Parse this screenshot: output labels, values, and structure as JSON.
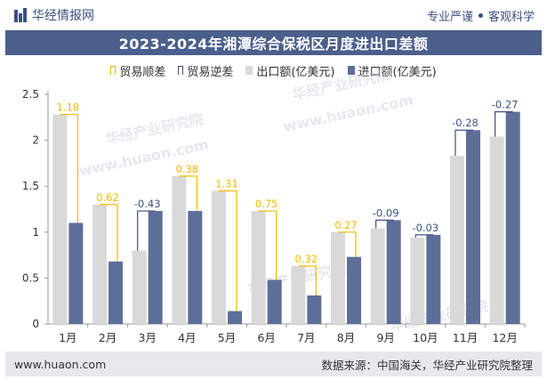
{
  "header": {
    "brand": "华经情报网",
    "tag_left": "专业严谨",
    "tag_right": "客观科学"
  },
  "title": "2023-2024年湘潭综合保税区月度进出口差额",
  "legend": {
    "surplus": "贸易顺差",
    "deficit": "贸易逆差",
    "export": "出口额(亿美元)",
    "import": "进口额(亿美元)"
  },
  "watermarks": [
    "华经产业研究院",
    "www.huaon.com"
  ],
  "footer": {
    "url": "www.huaon.com",
    "source": "数据来源：中国海关，华经产业研究院整理"
  },
  "colors": {
    "surplus": "#f5b800",
    "deficit": "#3b5083",
    "export": "#d9d9d9",
    "import": "#5d6f99",
    "header_bar": "#4b5f8c"
  },
  "chart_data": {
    "type": "bar",
    "categories": [
      "1月",
      "2月",
      "3月",
      "4月",
      "5月",
      "6月",
      "7月",
      "8月",
      "9月",
      "10月",
      "11月",
      "12月"
    ],
    "ylim": [
      0,
      2.5
    ],
    "yticks": [
      "0",
      "0.5",
      "1",
      "1.5",
      "2",
      "2.5"
    ],
    "series": [
      {
        "name": "出口额(亿美元)",
        "values": [
          2.28,
          1.3,
          0.8,
          1.61,
          1.45,
          1.23,
          0.63,
          1.0,
          1.04,
          0.94,
          1.83,
          2.04
        ]
      },
      {
        "name": "进口额(亿美元)",
        "values": [
          1.1,
          0.68,
          1.23,
          1.23,
          0.14,
          0.48,
          0.31,
          0.73,
          1.13,
          0.97,
          2.11,
          2.31
        ]
      }
    ],
    "balance_labels": [
      "1.18",
      "0.62",
      "-0.43",
      "0.38",
      "1.31",
      "0.75",
      "0.32",
      "0.27",
      "-0.09",
      "-0.03",
      "-0.28",
      "-0.27"
    ],
    "balance_values": [
      1.18,
      0.62,
      -0.43,
      0.38,
      1.31,
      0.75,
      0.32,
      0.27,
      -0.09,
      -0.03,
      -0.28,
      -0.27
    ]
  }
}
